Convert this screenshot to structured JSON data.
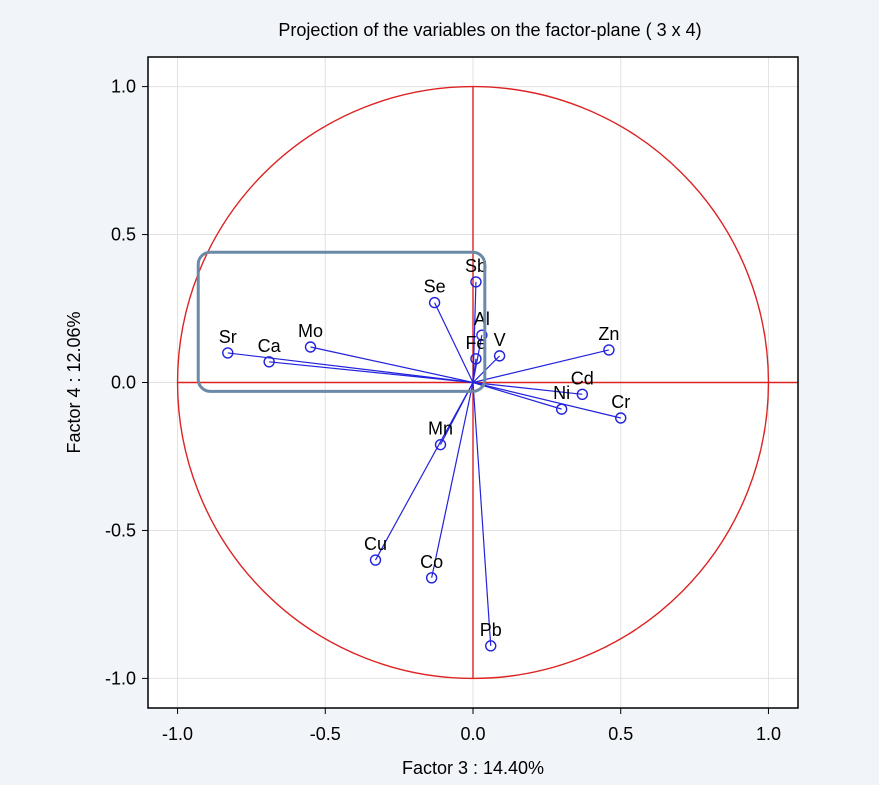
{
  "chart_data": {
    "type": "scatter",
    "title": "Projection of the variables on the factor-plane (  3 x   4)",
    "xlabel": "Factor 3 : 14.40%",
    "ylabel": "Factor 4 : 12.06%",
    "xlim": [
      -1.1,
      1.1
    ],
    "ylim": [
      -1.1,
      1.1
    ],
    "xticks": [
      "-1.0",
      "-0.5",
      "0.0",
      "0.5",
      "1.0"
    ],
    "yticks": [
      "1.0",
      "0.5",
      "0.0",
      "-0.5",
      "-1.0"
    ],
    "grid": true,
    "unit_circle": true,
    "colors": {
      "vectors": "#2222dd",
      "circle": "#dd2222",
      "highlight_box": "#6a8aa8",
      "plot_background": "#ffffff",
      "frame_background": "#f1f4f9"
    },
    "points": [
      {
        "name": "Sr",
        "x": -0.83,
        "y": 0.1
      },
      {
        "name": "Ca",
        "x": -0.69,
        "y": 0.07
      },
      {
        "name": "Mo",
        "x": -0.55,
        "y": 0.12
      },
      {
        "name": "Se",
        "x": -0.13,
        "y": 0.27
      },
      {
        "name": "Sb",
        "x": 0.01,
        "y": 0.34
      },
      {
        "name": "Al",
        "x": 0.03,
        "y": 0.16
      },
      {
        "name": "Fe",
        "x": 0.01,
        "y": 0.08
      },
      {
        "name": "V",
        "x": 0.09,
        "y": 0.09
      },
      {
        "name": "Zn",
        "x": 0.46,
        "y": 0.11
      },
      {
        "name": "Cd",
        "x": 0.37,
        "y": -0.04
      },
      {
        "name": "Ni",
        "x": 0.3,
        "y": -0.09
      },
      {
        "name": "Cr",
        "x": 0.5,
        "y": -0.12
      },
      {
        "name": "Mn",
        "x": -0.11,
        "y": -0.21
      },
      {
        "name": "Cu",
        "x": -0.33,
        "y": -0.6
      },
      {
        "name": "Co",
        "x": -0.14,
        "y": -0.66
      },
      {
        "name": "Pb",
        "x": 0.06,
        "y": -0.89
      }
    ],
    "highlight_box": {
      "x_from": -0.93,
      "x_to": 0.04,
      "y_from": -0.03,
      "y_to": 0.44
    }
  }
}
